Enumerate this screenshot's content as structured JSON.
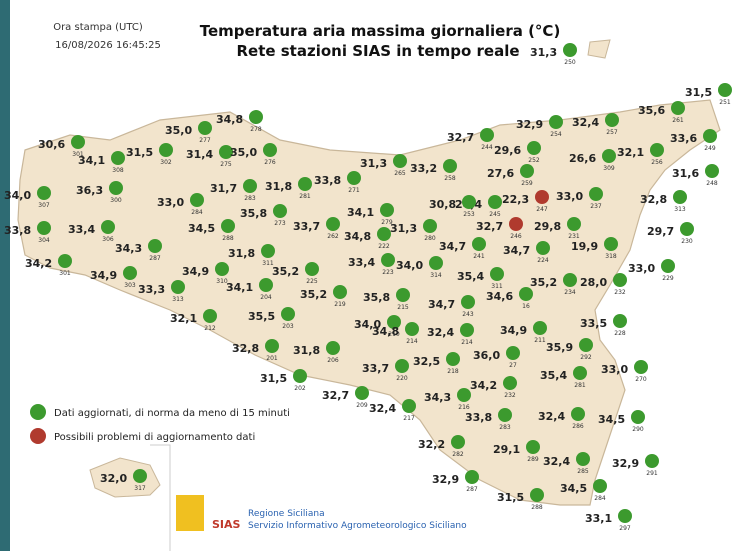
{
  "header": {
    "timestamp_label": "Ora stampa (UTC)",
    "timestamp": "16/08/2026 16:45:25",
    "title": "Temperatura aria massima giornaliera (°C)",
    "subtitle": "Rete stazioni SIAS in tempo reale"
  },
  "legend": {
    "ok": "Dati aggiornati, di norma da meno di 15 minuti",
    "problem": "Possibili problemi di aggiornamento dati"
  },
  "footer": {
    "org": "Regione Siciliana",
    "service": "Servizio Informativo Agrometeorologico Siciliano",
    "logo_text": "SIAS"
  },
  "stations": [
    {
      "temp": "31,3",
      "id": "250",
      "status": "ok"
    },
    {
      "temp": "31,5",
      "id": "251",
      "status": "ok"
    },
    {
      "temp": "35,6",
      "id": "261",
      "status": "ok"
    },
    {
      "temp": "32,4",
      "id": "257",
      "status": "ok"
    },
    {
      "temp": "32,9",
      "id": "254",
      "status": "ok"
    },
    {
      "temp": "32,7",
      "id": "244",
      "status": "ok"
    },
    {
      "temp": "33,6",
      "id": "249",
      "status": "ok"
    },
    {
      "temp": "29,6",
      "id": "252",
      "status": "ok"
    },
    {
      "temp": "32,1",
      "id": "256",
      "status": "ok"
    },
    {
      "temp": "26,6",
      "id": "309",
      "status": "ok"
    },
    {
      "temp": "31,6",
      "id": "248",
      "status": "ok"
    },
    {
      "temp": "27,6",
      "id": "259",
      "status": "ok"
    },
    {
      "temp": "33,0",
      "id": "237",
      "status": "ok"
    },
    {
      "temp": "22,3",
      "id": "247",
      "status": "problem"
    },
    {
      "temp": "32,8",
      "id": "313",
      "status": "ok"
    },
    {
      "temp": "24,4",
      "id": "245",
      "status": "ok"
    },
    {
      "temp": "30,8",
      "id": "253",
      "status": "ok"
    },
    {
      "temp": "32,7",
      "id": "246",
      "status": "problem"
    },
    {
      "temp": "29,8",
      "id": "231",
      "status": "ok"
    },
    {
      "temp": "29,7",
      "id": "230",
      "status": "ok"
    },
    {
      "temp": "19,9",
      "id": "318",
      "status": "ok"
    },
    {
      "temp": "34,7",
      "id": "241",
      "status": "ok"
    },
    {
      "temp": "34,7",
      "id": "224",
      "status": "ok"
    },
    {
      "temp": "33,0",
      "id": "229",
      "status": "ok"
    },
    {
      "temp": "35,4",
      "id": "311",
      "status": "ok"
    },
    {
      "temp": "35,2",
      "id": "234",
      "status": "ok"
    },
    {
      "temp": "28,0",
      "id": "232",
      "status": "ok"
    },
    {
      "temp": "34,6",
      "id": "16",
      "status": "ok"
    },
    {
      "temp": "34,7",
      "id": "243",
      "status": "ok"
    },
    {
      "temp": "33,5",
      "id": "228",
      "status": "ok"
    },
    {
      "temp": "34,9",
      "id": "211",
      "status": "ok"
    },
    {
      "temp": "32,4",
      "id": "214",
      "status": "ok"
    },
    {
      "temp": "35,9",
      "id": "292",
      "status": "ok"
    },
    {
      "temp": "36,0",
      "id": "27",
      "status": "ok"
    },
    {
      "temp": "33,0",
      "id": "270",
      "status": "ok"
    },
    {
      "temp": "32,5",
      "id": "218",
      "status": "ok"
    },
    {
      "temp": "35,4",
      "id": "281",
      "status": "ok"
    },
    {
      "temp": "34,2",
      "id": "232",
      "status": "ok"
    },
    {
      "temp": "34,3",
      "id": "216",
      "status": "ok"
    },
    {
      "temp": "33,8",
      "id": "283",
      "status": "ok"
    },
    {
      "temp": "32,4",
      "id": "286",
      "status": "ok"
    },
    {
      "temp": "34,5",
      "id": "290",
      "status": "ok"
    },
    {
      "temp": "32,2",
      "id": "282",
      "status": "ok"
    },
    {
      "temp": "29,1",
      "id": "289",
      "status": "ok"
    },
    {
      "temp": "32,4",
      "id": "285",
      "status": "ok"
    },
    {
      "temp": "32,9",
      "id": "291",
      "status": "ok"
    },
    {
      "temp": "32,9",
      "id": "287",
      "status": "ok"
    },
    {
      "temp": "34,5",
      "id": "284",
      "status": "ok"
    },
    {
      "temp": "31,5",
      "id": "288",
      "status": "ok"
    },
    {
      "temp": "33,1",
      "id": "297",
      "status": "ok"
    },
    {
      "temp": "30,6",
      "id": "301",
      "status": "ok"
    },
    {
      "temp": "34,1",
      "id": "308",
      "status": "ok"
    },
    {
      "temp": "31,5",
      "id": "302",
      "status": "ok"
    },
    {
      "temp": "35,0",
      "id": "277",
      "status": "ok"
    },
    {
      "temp": "34,8",
      "id": "278",
      "status": "ok"
    },
    {
      "temp": "31,4",
      "id": "275",
      "status": "ok"
    },
    {
      "temp": "35,0",
      "id": "276",
      "status": "ok"
    },
    {
      "temp": "36,3",
      "id": "300",
      "status": "ok"
    },
    {
      "temp": "34,0",
      "id": "307",
      "status": "ok"
    },
    {
      "temp": "33,0",
      "id": "284",
      "status": "ok"
    },
    {
      "temp": "31,7",
      "id": "283",
      "status": "ok"
    },
    {
      "temp": "31,8",
      "id": "281",
      "status": "ok"
    },
    {
      "temp": "33,8",
      "id": "271",
      "status": "ok"
    },
    {
      "temp": "31,3",
      "id": "265",
      "status": "ok"
    },
    {
      "temp": "33,2",
      "id": "258",
      "status": "ok"
    },
    {
      "temp": "33,8",
      "id": "304",
      "status": "ok"
    },
    {
      "temp": "33,4",
      "id": "306",
      "status": "ok"
    },
    {
      "temp": "34,5",
      "id": "288",
      "status": "ok"
    },
    {
      "temp": "35,8",
      "id": "273",
      "status": "ok"
    },
    {
      "temp": "33,7",
      "id": "262",
      "status": "ok"
    },
    {
      "temp": "34,1",
      "id": "279",
      "status": "ok"
    },
    {
      "temp": "34,8",
      "id": "222",
      "status": "ok"
    },
    {
      "temp": "31,3",
      "id": "280",
      "status": "ok"
    },
    {
      "temp": "34,3",
      "id": "287",
      "status": "ok"
    },
    {
      "temp": "31,8",
      "id": "311",
      "status": "ok"
    },
    {
      "temp": "34,2",
      "id": "301",
      "status": "ok"
    },
    {
      "temp": "34,9",
      "id": "303",
      "status": "ok"
    },
    {
      "temp": "33,3",
      "id": "313",
      "status": "ok"
    },
    {
      "temp": "34,9",
      "id": "310",
      "status": "ok"
    },
    {
      "temp": "35,2",
      "id": "225",
      "status": "ok"
    },
    {
      "temp": "33,4",
      "id": "223",
      "status": "ok"
    },
    {
      "temp": "34,0",
      "id": "314",
      "status": "ok"
    },
    {
      "temp": "34,1",
      "id": "204",
      "status": "ok"
    },
    {
      "temp": "35,2",
      "id": "219",
      "status": "ok"
    },
    {
      "temp": "35,8",
      "id": "215",
      "status": "ok"
    },
    {
      "temp": "32,1",
      "id": "212",
      "status": "ok"
    },
    {
      "temp": "35,5",
      "id": "203",
      "status": "ok"
    },
    {
      "temp": "34,0",
      "id": "210",
      "status": "ok"
    },
    {
      "temp": "34,8",
      "id": "214",
      "status": "ok"
    },
    {
      "temp": "32,8",
      "id": "201",
      "status": "ok"
    },
    {
      "temp": "31,8",
      "id": "206",
      "status": "ok"
    },
    {
      "temp": "31,5",
      "id": "202",
      "status": "ok"
    },
    {
      "temp": "33,7",
      "id": "220",
      "status": "ok"
    },
    {
      "temp": "32,7",
      "id": "209",
      "status": "ok"
    },
    {
      "temp": "32,4",
      "id": "217",
      "status": "ok"
    },
    {
      "temp": "32,0",
      "id": "317",
      "status": "ok"
    }
  ]
}
